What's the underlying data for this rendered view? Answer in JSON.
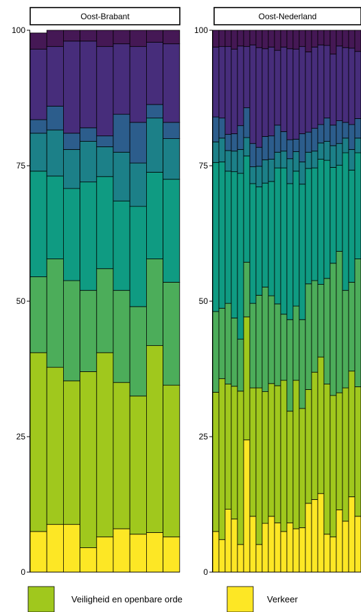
{
  "chart_data": {
    "type": "bar",
    "stacked": true,
    "ylim": [
      0,
      100
    ],
    "yticks": [
      0,
      25,
      50,
      75,
      100
    ],
    "title": "",
    "xlabel": "",
    "ylabel": "",
    "palette": [
      "#fde725",
      "#a0c81d",
      "#4cad5a",
      "#0f9b82",
      "#1c8088",
      "#2c5d8c",
      "#472d7b",
      "#451855"
    ],
    "panels": [
      {
        "title": "Oost-Brabant",
        "bars": [
          [
            7.5,
            33.0,
            14.0,
            19.5,
            7.0,
            2.5,
            13.0,
            3.0
          ],
          [
            8.8,
            29.0,
            20.0,
            15.3,
            8.5,
            4.4,
            11.0,
            3.0
          ],
          [
            8.8,
            26.5,
            18.5,
            17.0,
            7.2,
            3.0,
            17.0,
            2.0
          ],
          [
            4.5,
            32.5,
            15.0,
            20.0,
            7.5,
            2.5,
            16.0,
            2.0
          ],
          [
            6.5,
            34.0,
            15.5,
            17.0,
            5.5,
            2.0,
            16.5,
            3.0
          ],
          [
            8.0,
            27.0,
            17.0,
            16.5,
            9.0,
            7.0,
            13.0,
            2.5
          ],
          [
            7.0,
            25.5,
            16.5,
            18.5,
            8.0,
            7.5,
            14.0,
            3.0
          ],
          [
            7.3,
            34.5,
            16.0,
            16.0,
            10.0,
            2.5,
            11.5,
            2.2
          ],
          [
            6.5,
            28.0,
            19.0,
            19.0,
            7.5,
            3.0,
            14.5,
            2.5
          ]
        ]
      },
      {
        "title": "Oost-Nederland",
        "bars": [
          [
            7.5,
            25.7,
            14.9,
            27.5,
            3.8,
            4.6,
            12.9,
            3.1
          ],
          [
            6.0,
            29.7,
            13.0,
            27.0,
            4.4,
            3.7,
            13.2,
            3.0
          ],
          [
            11.6,
            23.1,
            14.9,
            24.4,
            3.8,
            3.0,
            16.2,
            3.0
          ],
          [
            9.8,
            24.5,
            12.6,
            27.0,
            3.8,
            3.2,
            15.6,
            3.5
          ],
          [
            5.1,
            28.3,
            9.6,
            30.6,
            4.4,
            4.4,
            14.7,
            2.9
          ],
          [
            24.4,
            22.7,
            10.1,
            19.6,
            3.4,
            5.5,
            11.3,
            3.0
          ],
          [
            10.3,
            23.7,
            15.6,
            22.1,
            3.1,
            4.3,
            18.2,
            2.7
          ],
          [
            5.1,
            28.9,
            17.1,
            20.0,
            3.8,
            3.5,
            18.4,
            3.2
          ],
          [
            9.0,
            24.3,
            19.3,
            19.2,
            4.3,
            4.3,
            16.2,
            3.4
          ],
          [
            10.3,
            24.5,
            16.2,
            21.1,
            4.1,
            4.3,
            16.4,
            3.1
          ],
          [
            9.1,
            25.3,
            15.1,
            25.1,
            2.9,
            5.0,
            13.8,
            3.7
          ],
          [
            7.5,
            27.9,
            12.2,
            27.0,
            3.1,
            3.6,
            15.6,
            3.1
          ],
          [
            9.1,
            20.6,
            16.9,
            25.1,
            4.6,
            3.5,
            16.8,
            3.4
          ],
          [
            8.0,
            27.4,
            13.7,
            24.9,
            3.6,
            2.3,
            16.6,
            3.5
          ],
          [
            8.2,
            22.0,
            16.4,
            25.0,
            4.1,
            5.2,
            16.1,
            3.0
          ],
          [
            12.7,
            21.0,
            19.5,
            21.3,
            3.0,
            3.7,
            14.8,
            4.0
          ],
          [
            13.4,
            23.5,
            16.9,
            20.8,
            3.1,
            4.2,
            15.0,
            3.1
          ],
          [
            14.5,
            25.2,
            13.4,
            23.1,
            3.0,
            3.4,
            14.7,
            2.7
          ],
          [
            7.0,
            27.7,
            19.5,
            21.8,
            3.5,
            4.3,
            13.4,
            2.8
          ],
          [
            6.5,
            26.1,
            24.4,
            17.7,
            4.0,
            3.8,
            13.1,
            4.4
          ],
          [
            11.5,
            21.6,
            26.1,
            15.9,
            4.0,
            4.2,
            13.8,
            2.9
          ],
          [
            9.4,
            24.6,
            18.0,
            25.4,
            2.7,
            2.9,
            13.8,
            3.2
          ],
          [
            13.9,
            23.2,
            16.4,
            20.7,
            3.8,
            4.6,
            14.1,
            3.3
          ],
          [
            10.3,
            23.9,
            23.6,
            19.6,
            2.7,
            3.6,
            12.4,
            3.9
          ],
          [
            12.9,
            21.9,
            19.1,
            25.7,
            2.3,
            3.8,
            11.4,
            2.9
          ],
          [
            7.8,
            20.7,
            14.6,
            33.2,
            2.9,
            2.9,
            14.8,
            3.1
          ],
          [
            11.6,
            28.7,
            15.7,
            24.3,
            3.4,
            2.3,
            11.2,
            2.8
          ]
        ]
      }
    ],
    "legend": [
      {
        "label": "Veiligheid en openbare orde",
        "color": "#a0c81d"
      },
      {
        "label": "Verkeer",
        "color": "#fde725"
      }
    ]
  }
}
